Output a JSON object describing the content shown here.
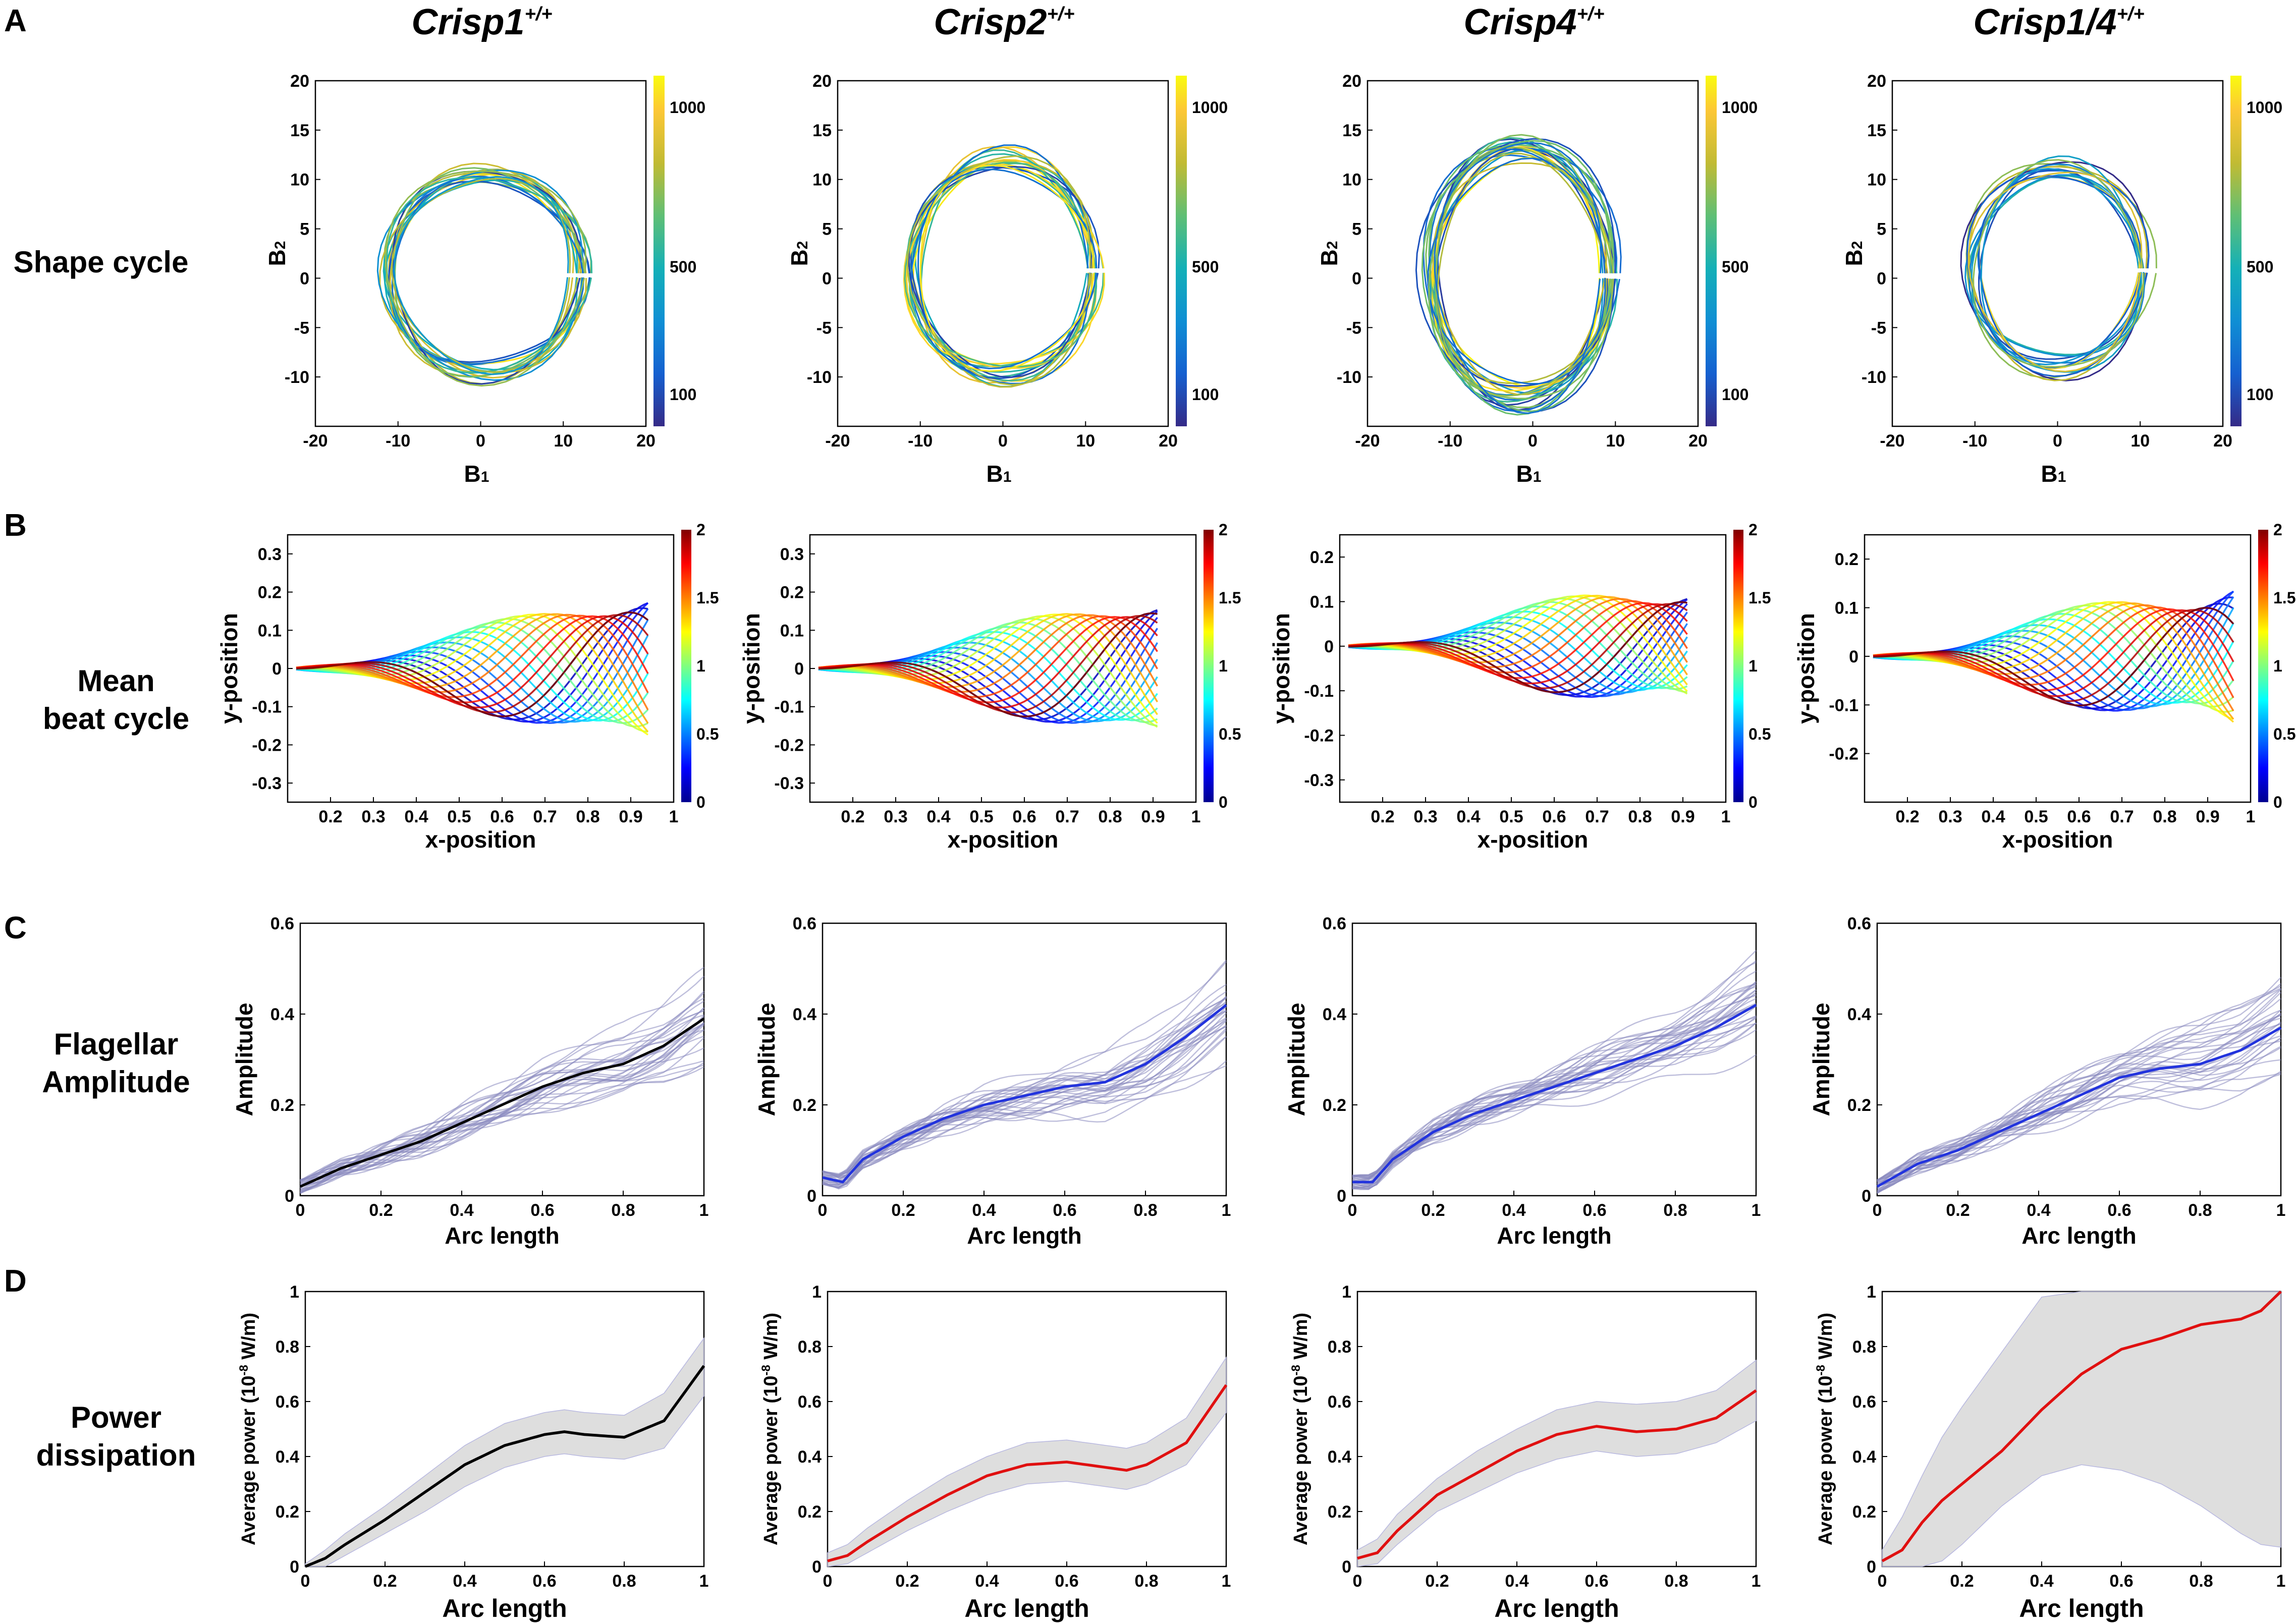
{
  "panel_letters": [
    "A",
    "B",
    "C",
    "D"
  ],
  "row_labels": {
    "A": [
      "Shape cycle"
    ],
    "B": [
      "Mean",
      "beat cycle"
    ],
    "C": [
      "Flagellar",
      "Amplitude"
    ],
    "D": [
      "Power",
      "dissipation"
    ]
  },
  "columns": [
    {
      "gene": "Crisp1",
      "superscript": "+/+"
    },
    {
      "gene": "Crisp2",
      "superscript": "+/+"
    },
    {
      "gene": "Crisp4",
      "superscript": "+/+"
    },
    {
      "gene": "Crisp1/4",
      "superscript": "+/+"
    }
  ],
  "colors": {
    "black_line": "#000000",
    "blue_line": "#2233dd",
    "red_line": "#e01010",
    "trace_gray": "#8a8ac0",
    "shade": "#d0d0d0"
  },
  "chart_data": [
    {
      "row": "A",
      "type": "line",
      "title": "Shape cycle",
      "xlabel": "B1",
      "ylabel": "B2",
      "xlim": [
        -20,
        20
      ],
      "ylim": [
        -15,
        20
      ],
      "xticks": [
        -20,
        -10,
        0,
        10,
        20
      ],
      "yticks": [
        -10,
        -5,
        0,
        5,
        10,
        15,
        20
      ],
      "colorbar": {
        "ticks": [
          100,
          500,
          1000
        ],
        "colormap": "parula"
      },
      "panels": [
        {
          "column": "Crisp1",
          "center": [
            0.5,
            0.5
          ],
          "radius_x": 11.5,
          "radius_y": 10,
          "n_loops": 18
        },
        {
          "column": "Crisp2",
          "center": [
            0,
            1
          ],
          "radius_x": 11,
          "radius_y": 11,
          "n_loops": 18
        },
        {
          "column": "Crisp4",
          "center": [
            -1.5,
            0.5
          ],
          "radius_x": 11,
          "radius_y": 12.5,
          "n_loops": 22
        },
        {
          "column": "Crisp1/4",
          "center": [
            0,
            1
          ],
          "radius_x": 10.5,
          "radius_y": 10,
          "n_loops": 15
        }
      ]
    },
    {
      "row": "B",
      "type": "line",
      "title": "Mean beat cycle",
      "xlabel": "x-position",
      "ylabel": "y-position",
      "xticks": [
        0.2,
        0.3,
        0.4,
        0.5,
        0.6,
        0.7,
        0.8,
        0.9,
        1
      ],
      "colorbar": {
        "ticks": [
          0,
          0.5,
          1,
          1.5,
          2
        ],
        "colormap": "jet"
      },
      "panels": [
        {
          "column": "Crisp1",
          "xlim": [
            0.1,
            1.0
          ],
          "ylim": [
            -0.35,
            0.35
          ],
          "yticks": [
            -0.3,
            -0.2,
            -0.1,
            0,
            0.1,
            0.2,
            0.3
          ],
          "amplitude": 0.18,
          "tail_end": 0.95
        },
        {
          "column": "Crisp2",
          "xlim": [
            0.1,
            1.0
          ],
          "ylim": [
            -0.35,
            0.35
          ],
          "yticks": [
            -0.3,
            -0.2,
            -0.1,
            0,
            0.1,
            0.2,
            0.3
          ],
          "amplitude": 0.17,
          "tail_end": 0.92
        },
        {
          "column": "Crisp4",
          "xlim": [
            0.1,
            1.0
          ],
          "ylim": [
            -0.35,
            0.25
          ],
          "yticks": [
            -0.3,
            -0.2,
            -0.1,
            0,
            0.1,
            0.2
          ],
          "amplitude": 0.13,
          "tail_end": 0.92
        },
        {
          "column": "Crisp1/4",
          "xlim": [
            0.1,
            1.0
          ],
          "ylim": [
            -0.3,
            0.25
          ],
          "yticks": [
            -0.2,
            -0.1,
            0,
            0.1,
            0.2
          ],
          "amplitude": 0.14,
          "tail_end": 0.97
        }
      ]
    },
    {
      "row": "C",
      "type": "line",
      "title": "Flagellar Amplitude",
      "xlabel": "Arc length",
      "ylabel": "Amplitude",
      "xlim": [
        0,
        1
      ],
      "ylim": [
        0,
        0.6
      ],
      "xticks": [
        0,
        0.2,
        0.4,
        0.6,
        0.8,
        1
      ],
      "yticks": [
        0,
        0.2,
        0.4,
        0.6
      ],
      "panels": [
        {
          "column": "Crisp1",
          "mean_color": "black",
          "mean": {
            "x": [
              0,
              0.1,
              0.2,
              0.3,
              0.4,
              0.5,
              0.6,
              0.7,
              0.8,
              0.9,
              1.0
            ],
            "y": [
              0.02,
              0.06,
              0.09,
              0.12,
              0.16,
              0.2,
              0.24,
              0.27,
              0.29,
              0.33,
              0.39
            ]
          }
        },
        {
          "column": "Crisp2",
          "mean_color": "blue",
          "mean": {
            "x": [
              0,
              0.05,
              0.1,
              0.2,
              0.3,
              0.4,
              0.5,
              0.6,
              0.7,
              0.8,
              0.9,
              1.0
            ],
            "y": [
              0.04,
              0.03,
              0.08,
              0.13,
              0.17,
              0.2,
              0.22,
              0.24,
              0.25,
              0.29,
              0.35,
              0.42
            ]
          }
        },
        {
          "column": "Crisp4",
          "mean_color": "blue",
          "mean": {
            "x": [
              0,
              0.05,
              0.1,
              0.2,
              0.3,
              0.4,
              0.5,
              0.6,
              0.7,
              0.8,
              0.9,
              1.0
            ],
            "y": [
              0.03,
              0.03,
              0.08,
              0.14,
              0.18,
              0.21,
              0.24,
              0.27,
              0.3,
              0.33,
              0.37,
              0.42
            ]
          }
        },
        {
          "column": "Crisp1/4",
          "mean_color": "blue",
          "mean": {
            "x": [
              0,
              0.1,
              0.2,
              0.3,
              0.4,
              0.5,
              0.6,
              0.7,
              0.8,
              0.9,
              1.0
            ],
            "y": [
              0.02,
              0.07,
              0.1,
              0.14,
              0.18,
              0.22,
              0.26,
              0.28,
              0.29,
              0.32,
              0.37
            ]
          }
        }
      ]
    },
    {
      "row": "D",
      "type": "line",
      "title": "Power dissipation",
      "xlabel": "Arc length",
      "ylabel": "Average power (10",
      "ylabel_exponent": "-8",
      "ylabel_suffix": " W/m)",
      "xlim": [
        0,
        1
      ],
      "ylim": [
        0,
        1
      ],
      "xticks": [
        0,
        0.2,
        0.4,
        0.6,
        0.8,
        1
      ],
      "panels": [
        {
          "column": "Crisp1",
          "mean_color": "black",
          "yticks": [
            0,
            0.2,
            0.4,
            0.6,
            0.8,
            1
          ],
          "mean": {
            "x": [
              0,
              0.05,
              0.1,
              0.2,
              0.3,
              0.4,
              0.5,
              0.6,
              0.65,
              0.7,
              0.8,
              0.9,
              1.0
            ],
            "y": [
              0.0,
              0.03,
              0.08,
              0.17,
              0.27,
              0.37,
              0.44,
              0.48,
              0.49,
              0.48,
              0.47,
              0.53,
              0.73
            ]
          },
          "band": {
            "lower": [
              0.0,
              0.0,
              0.04,
              0.12,
              0.2,
              0.29,
              0.36,
              0.4,
              0.41,
              0.4,
              0.39,
              0.43,
              0.62
            ],
            "upper": [
              0.01,
              0.06,
              0.12,
              0.22,
              0.33,
              0.44,
              0.52,
              0.56,
              0.57,
              0.56,
              0.55,
              0.63,
              0.83
            ]
          }
        },
        {
          "column": "Crisp2",
          "mean_color": "red",
          "yticks": [
            0,
            0.2,
            0.4,
            0.6,
            0.8,
            1
          ],
          "mean": {
            "x": [
              0,
              0.05,
              0.1,
              0.2,
              0.3,
              0.4,
              0.5,
              0.6,
              0.7,
              0.75,
              0.8,
              0.9,
              1.0
            ],
            "y": [
              0.02,
              0.04,
              0.09,
              0.18,
              0.26,
              0.33,
              0.37,
              0.38,
              0.36,
              0.35,
              0.37,
              0.45,
              0.66
            ]
          },
          "band": {
            "lower": [
              0.0,
              0.01,
              0.05,
              0.13,
              0.2,
              0.26,
              0.3,
              0.31,
              0.29,
              0.28,
              0.3,
              0.37,
              0.56
            ],
            "upper": [
              0.05,
              0.08,
              0.14,
              0.24,
              0.33,
              0.4,
              0.45,
              0.46,
              0.44,
              0.43,
              0.45,
              0.54,
              0.76
            ]
          }
        },
        {
          "column": "Crisp4",
          "mean_color": "red",
          "yticks": [
            0,
            0.2,
            0.4,
            0.6,
            0.8,
            1
          ],
          "mean": {
            "x": [
              0,
              0.05,
              0.1,
              0.2,
              0.3,
              0.4,
              0.5,
              0.6,
              0.7,
              0.8,
              0.9,
              1.0
            ],
            "y": [
              0.03,
              0.05,
              0.13,
              0.26,
              0.34,
              0.42,
              0.48,
              0.51,
              0.49,
              0.5,
              0.54,
              0.64
            ]
          },
          "band": {
            "lower": [
              0.0,
              0.01,
              0.08,
              0.2,
              0.27,
              0.34,
              0.39,
              0.42,
              0.4,
              0.41,
              0.45,
              0.53
            ],
            "upper": [
              0.06,
              0.1,
              0.19,
              0.32,
              0.42,
              0.5,
              0.57,
              0.6,
              0.59,
              0.6,
              0.64,
              0.75
            ]
          }
        },
        {
          "column": "Crisp1/4",
          "mean_color": "red",
          "yticks": [
            0,
            0.2,
            0.4,
            0.6,
            0.8,
            1
          ],
          "mean": {
            "x": [
              0,
              0.05,
              0.1,
              0.15,
              0.2,
              0.3,
              0.4,
              0.5,
              0.6,
              0.7,
              0.8,
              0.9,
              0.95,
              1.0
            ],
            "y": [
              0.02,
              0.06,
              0.16,
              0.24,
              0.3,
              0.42,
              0.57,
              0.7,
              0.79,
              0.83,
              0.88,
              0.9,
              0.93,
              1.0
            ]
          },
          "band": {
            "lower": [
              0.0,
              0.0,
              0.0,
              0.02,
              0.08,
              0.22,
              0.33,
              0.37,
              0.35,
              0.3,
              0.22,
              0.12,
              0.08,
              0.07
            ],
            "upper": [
              0.06,
              0.18,
              0.33,
              0.47,
              0.58,
              0.78,
              0.98,
              1.0,
              1.0,
              1.0,
              1.0,
              1.0,
              1.0,
              1.0
            ]
          }
        }
      ]
    }
  ]
}
